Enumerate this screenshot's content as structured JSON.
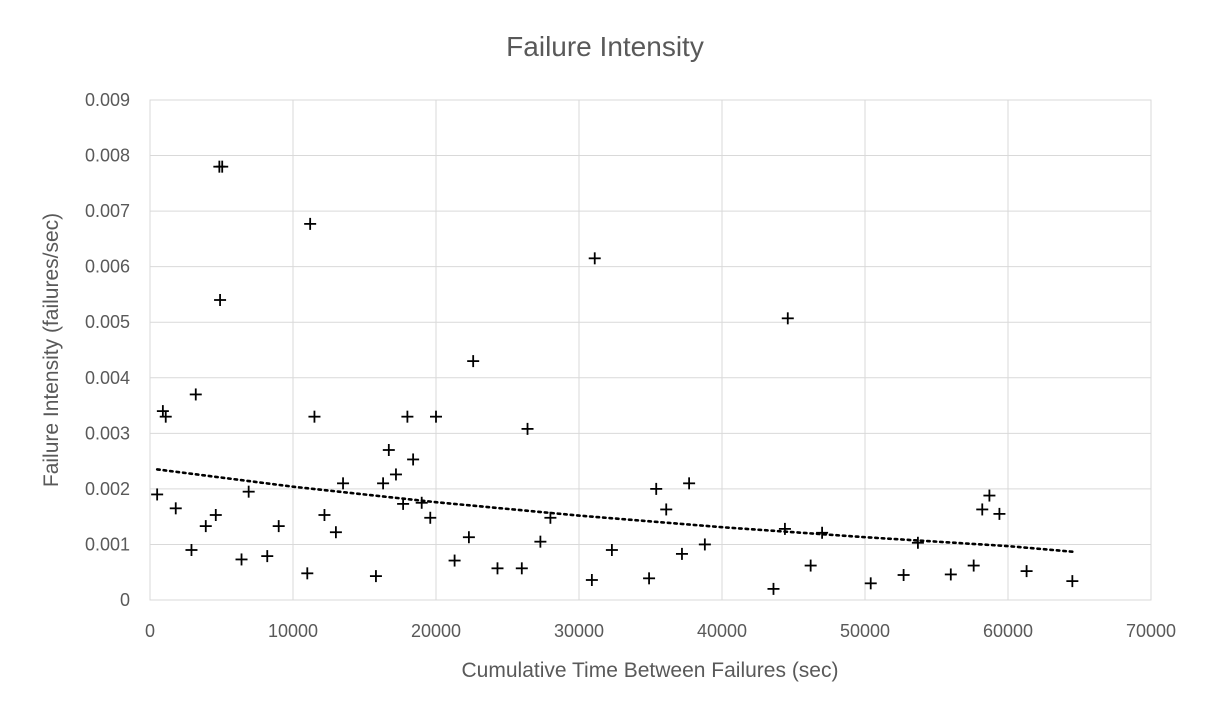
{
  "chart_data": {
    "type": "scatter",
    "title": "Failure Intensity",
    "xlabel": "Cumulative Time Between Failures (sec)",
    "ylabel": "Failure Intensity (failures/sec)",
    "xlim": [
      0,
      70000
    ],
    "ylim": [
      0,
      0.009
    ],
    "x_ticks": [
      "0",
      "10000",
      "20000",
      "30000",
      "40000",
      "50000",
      "60000",
      "70000"
    ],
    "y_ticks": [
      "0",
      "0.001",
      "0.002",
      "0.003",
      "0.004",
      "0.005",
      "0.006",
      "0.007",
      "0.008",
      "0.009"
    ],
    "grid": true,
    "legend": "none",
    "marker": "plus",
    "marker_color": "#000000",
    "series": [
      {
        "points": [
          [
            500,
            0.0019
          ],
          [
            900,
            0.0034
          ],
          [
            1100,
            0.0033
          ],
          [
            1800,
            0.00165
          ],
          [
            2900,
            0.0009
          ],
          [
            3200,
            0.0037
          ],
          [
            3900,
            0.00133
          ],
          [
            4600,
            0.00153
          ],
          [
            4850,
            0.0078
          ],
          [
            5050,
            0.0078
          ],
          [
            4900,
            0.0054
          ],
          [
            6400,
            0.00073
          ],
          [
            6900,
            0.00195
          ],
          [
            8200,
            0.00079
          ],
          [
            9000,
            0.00133
          ],
          [
            11000,
            0.00048
          ],
          [
            11200,
            0.00677
          ],
          [
            11500,
            0.0033
          ],
          [
            12200,
            0.00153
          ],
          [
            13000,
            0.00122
          ],
          [
            13500,
            0.0021
          ],
          [
            15800,
            0.00043
          ],
          [
            16300,
            0.0021
          ],
          [
            16700,
            0.0027
          ],
          [
            17200,
            0.00226
          ],
          [
            17700,
            0.00173
          ],
          [
            18000,
            0.0033
          ],
          [
            18400,
            0.00253
          ],
          [
            19000,
            0.00175
          ],
          [
            19600,
            0.00148
          ],
          [
            20000,
            0.0033
          ],
          [
            21300,
            0.00071
          ],
          [
            22300,
            0.00113
          ],
          [
            22600,
            0.0043
          ],
          [
            24300,
            0.00057
          ],
          [
            26000,
            0.00057
          ],
          [
            26400,
            0.00308
          ],
          [
            27300,
            0.00105
          ],
          [
            28000,
            0.00148
          ],
          [
            30900,
            0.00036
          ],
          [
            31100,
            0.00615
          ],
          [
            32300,
            0.0009
          ],
          [
            34900,
            0.00039
          ],
          [
            35400,
            0.002
          ],
          [
            36100,
            0.00163
          ],
          [
            37200,
            0.00083
          ],
          [
            37700,
            0.0021
          ],
          [
            38800,
            0.001
          ],
          [
            43600,
            0.0002
          ],
          [
            44400,
            0.00128
          ],
          [
            44600,
            0.00507
          ],
          [
            46200,
            0.00062
          ],
          [
            47000,
            0.00121
          ],
          [
            50400,
            0.0003
          ],
          [
            52700,
            0.00045
          ],
          [
            53700,
            0.00103
          ],
          [
            56000,
            0.00046
          ],
          [
            57600,
            0.00062
          ],
          [
            58200,
            0.00163
          ],
          [
            58700,
            0.00188
          ],
          [
            59400,
            0.00155
          ],
          [
            61300,
            0.00052
          ],
          [
            64500,
            0.00034
          ]
        ]
      }
    ],
    "trendline": {
      "style": "dotted",
      "points": [
        [
          500,
          0.00235
        ],
        [
          10000,
          0.00204
        ],
        [
          20000,
          0.00176
        ],
        [
          30000,
          0.00152
        ],
        [
          40000,
          0.00131
        ],
        [
          50000,
          0.00113
        ],
        [
          60000,
          0.00097
        ],
        [
          64500,
          0.00087
        ]
      ]
    }
  }
}
